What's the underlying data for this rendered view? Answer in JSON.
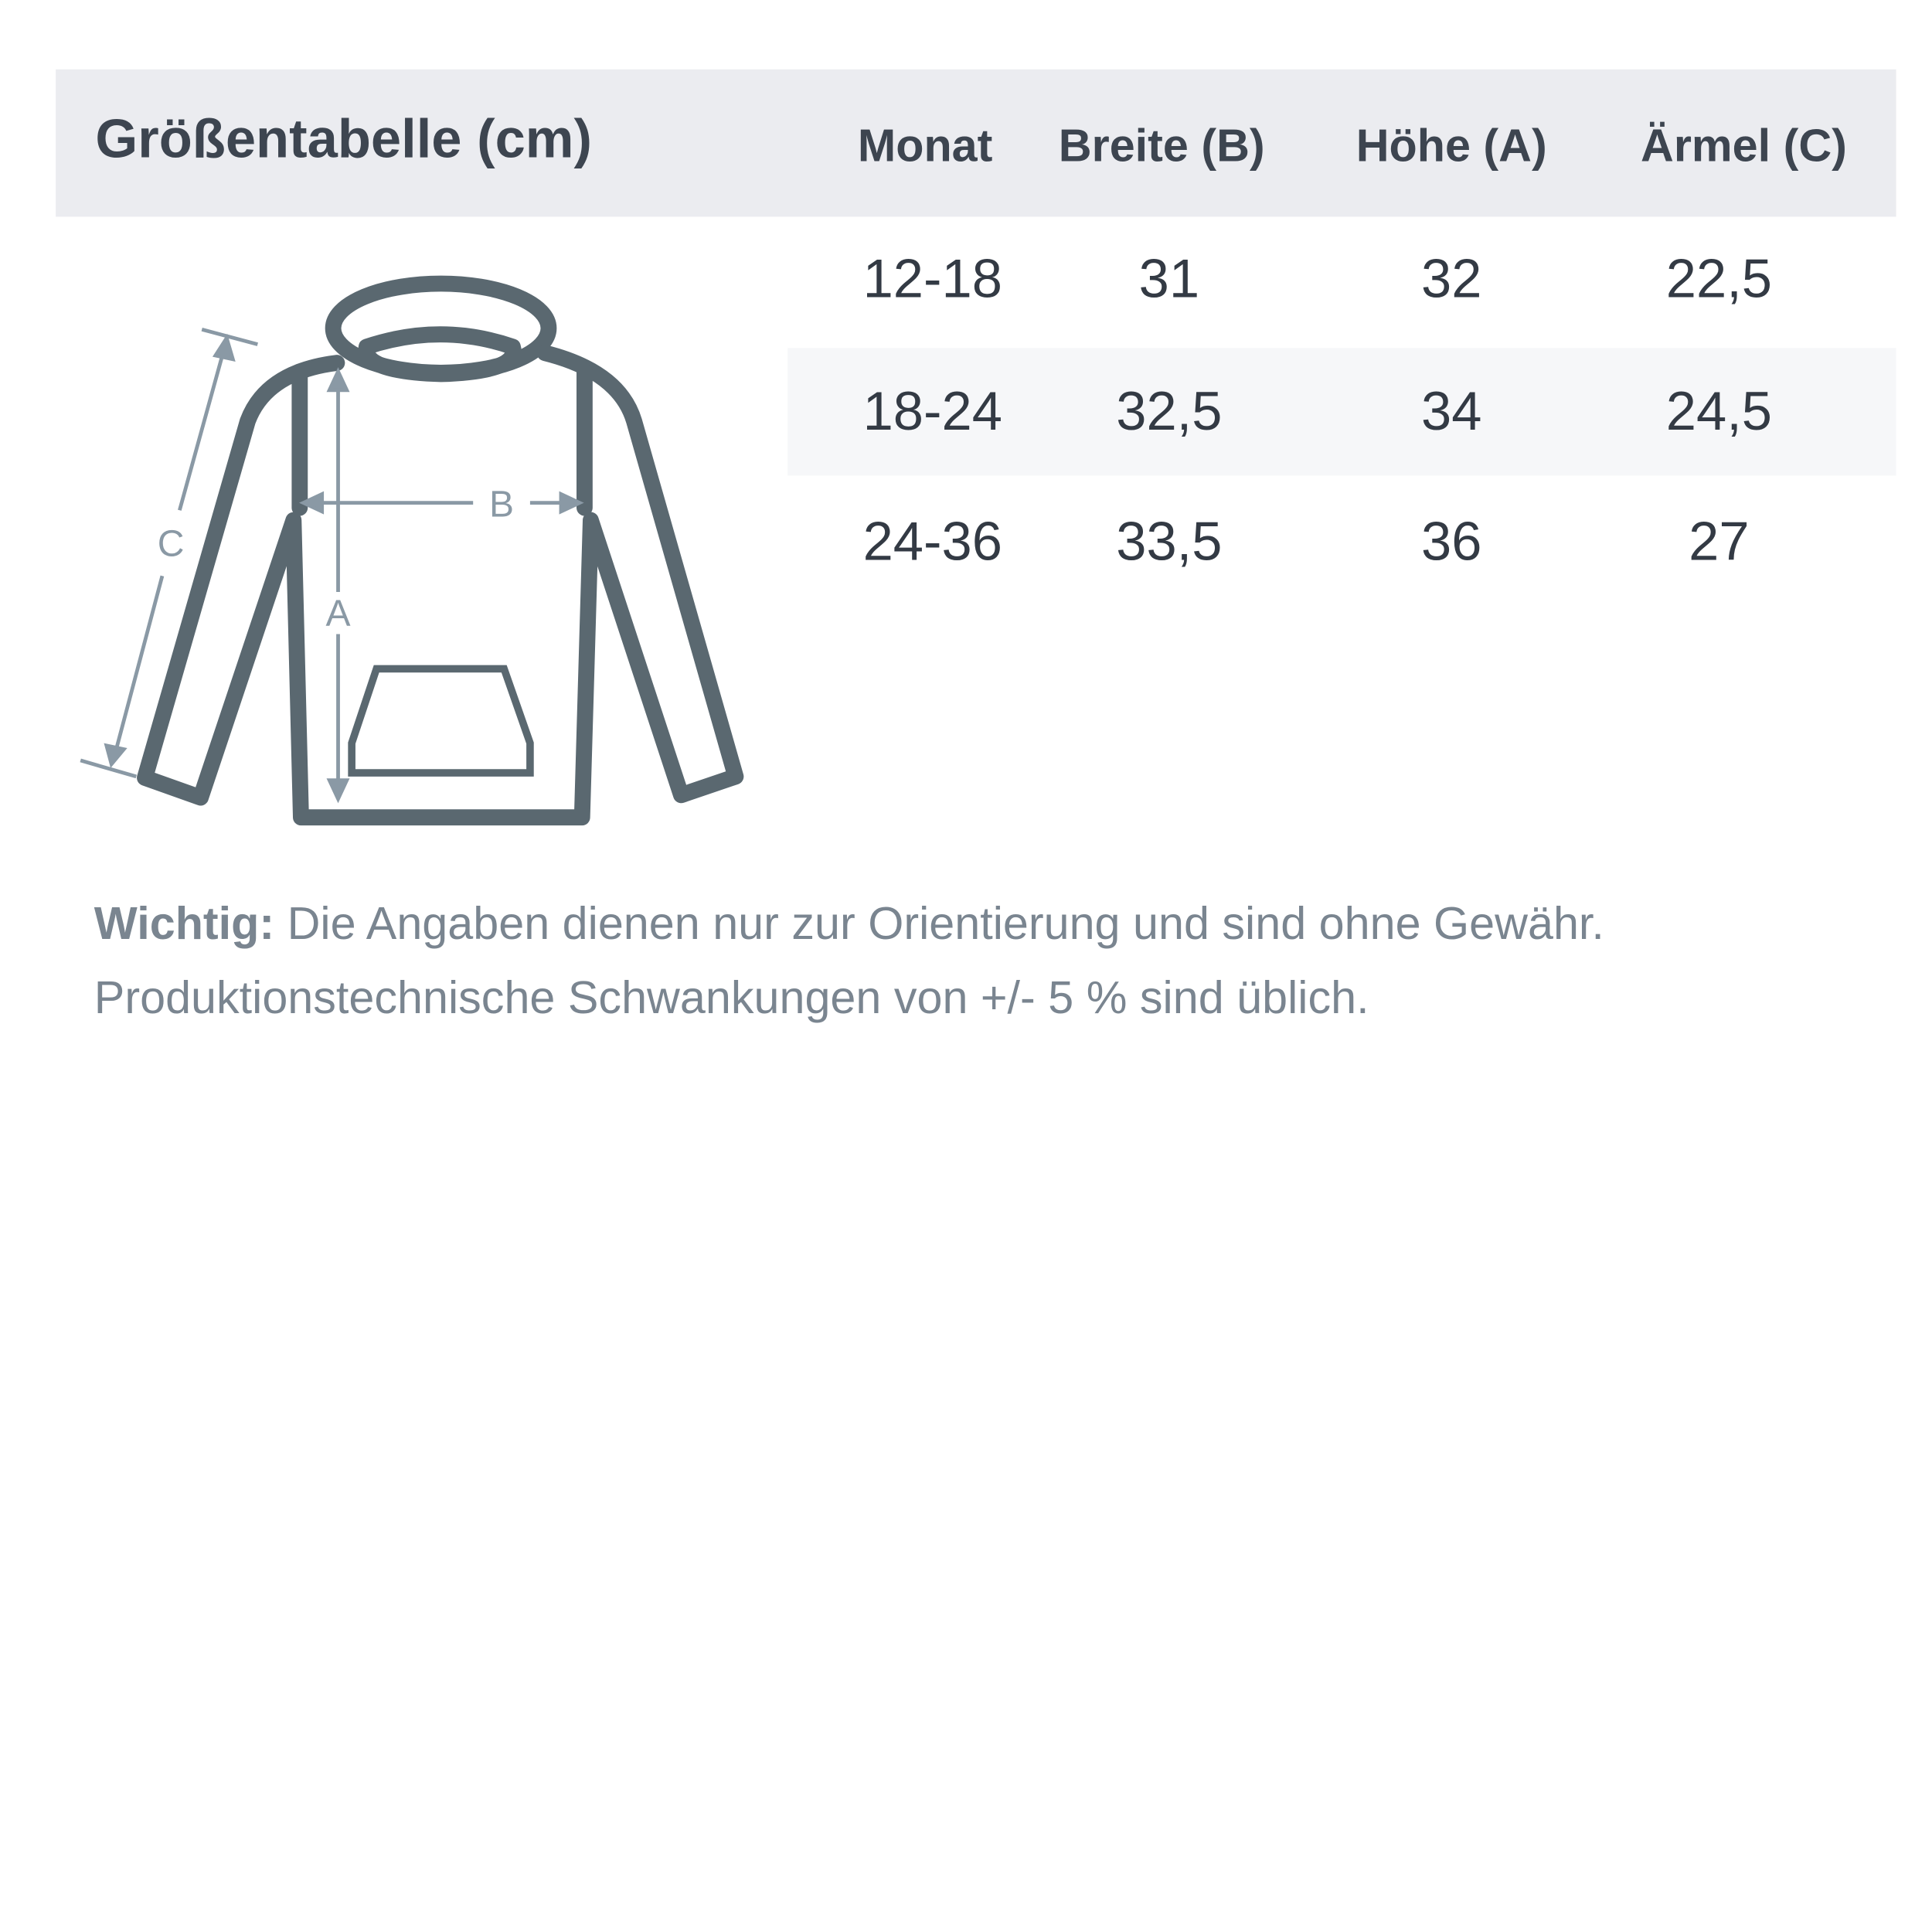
{
  "title": "Größentabelle (cm)",
  "columns": [
    "Monat",
    "Breite (B)",
    "Höhe (A)",
    "Ärmel (C)"
  ],
  "rows": [
    [
      "12-18",
      "31",
      "32",
      "22,5"
    ],
    [
      "18-24",
      "32,5",
      "34",
      "24,5"
    ],
    [
      "24-36",
      "33,5",
      "36",
      "27"
    ]
  ],
  "diagram": {
    "label_a": "A",
    "label_b": "B",
    "label_c": "C"
  },
  "note": {
    "bold": "Wichtig:",
    "line1": " Die Angaben dienen nur zur Orientierung und sind ohne Gewähr.",
    "line2": "Produktionstechnische Schwankungen von +/- 5 % sind üblich."
  },
  "colors": {
    "header_bg": "#ebecf0",
    "text": "#3d4550",
    "outline": "#5a6870",
    "measure": "#8a99a5"
  }
}
